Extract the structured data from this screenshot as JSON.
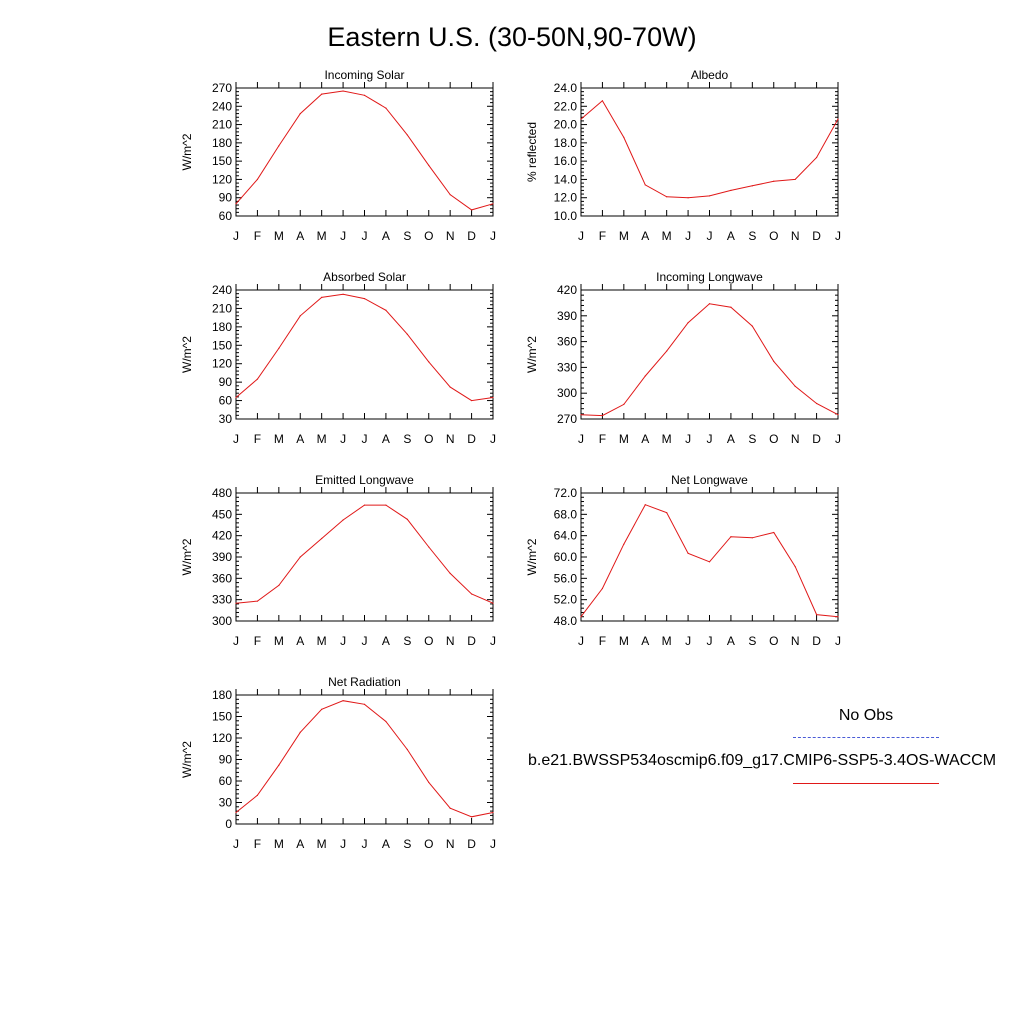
{
  "figure": {
    "title": "Eastern U.S. (30-50N,90-70W)"
  },
  "colors": {
    "model_line": "#e01818",
    "obs_line": "#4a5bd6",
    "axis": "#000000"
  },
  "legend": {
    "obs_label": "No Obs",
    "model_label": "b.e21.BWSSP534oscmip6.f09_g17.CMIP6-SSP5-3.4OS-WACCM"
  },
  "chart_data": [
    {
      "type": "line",
      "title": "Incoming Solar",
      "ylabel": "W/m^2",
      "xlabel": "",
      "categories": [
        "J",
        "F",
        "M",
        "A",
        "M",
        "J",
        "J",
        "A",
        "S",
        "O",
        "N",
        "D",
        "J"
      ],
      "ylim": [
        60,
        270
      ],
      "yticks": [
        "60",
        "90",
        "120",
        "150",
        "180",
        "210",
        "240",
        "270"
      ],
      "series": [
        {
          "values": [
            80,
            120,
            175,
            228,
            260,
            265,
            258,
            237,
            193,
            143,
            95,
            70,
            80
          ]
        }
      ]
    },
    {
      "type": "line",
      "title": "Albedo",
      "ylabel": "% reflected",
      "xlabel": "",
      "categories": [
        "J",
        "F",
        "M",
        "A",
        "M",
        "J",
        "J",
        "A",
        "S",
        "O",
        "N",
        "D",
        "J"
      ],
      "ylim": [
        10.0,
        24.0
      ],
      "yticks": [
        "10.0",
        "12.0",
        "14.0",
        "16.0",
        "18.0",
        "20.0",
        "22.0",
        "24.0"
      ],
      "series": [
        {
          "values": [
            20.6,
            22.6,
            18.6,
            13.4,
            12.1,
            12.0,
            12.2,
            12.8,
            13.3,
            13.8,
            14.0,
            16.4,
            20.6
          ]
        }
      ]
    },
    {
      "type": "line",
      "title": "Absorbed Solar",
      "ylabel": "W/m^2",
      "xlabel": "",
      "categories": [
        "J",
        "F",
        "M",
        "A",
        "M",
        "J",
        "J",
        "A",
        "S",
        "O",
        "N",
        "D",
        "J"
      ],
      "ylim": [
        30,
        240
      ],
      "yticks": [
        "30",
        "60",
        "90",
        "120",
        "150",
        "180",
        "210",
        "240"
      ],
      "series": [
        {
          "values": [
            65,
            95,
            145,
            198,
            228,
            233,
            226,
            207,
            168,
            123,
            82,
            60,
            65
          ]
        }
      ]
    },
    {
      "type": "line",
      "title": "Incoming Longwave",
      "ylabel": "W/m^2",
      "xlabel": "",
      "categories": [
        "J",
        "F",
        "M",
        "A",
        "M",
        "J",
        "J",
        "A",
        "S",
        "O",
        "N",
        "D",
        "J"
      ],
      "ylim": [
        270,
        420
      ],
      "yticks": [
        "270",
        "300",
        "330",
        "360",
        "390",
        "420"
      ],
      "series": [
        {
          "values": [
            275,
            274,
            287,
            320,
            349,
            382,
            404,
            400,
            378,
            337,
            308,
            288,
            275
          ]
        }
      ]
    },
    {
      "type": "line",
      "title": "Emitted Longwave",
      "ylabel": "W/m^2",
      "xlabel": "",
      "categories": [
        "J",
        "F",
        "M",
        "A",
        "M",
        "J",
        "J",
        "A",
        "S",
        "O",
        "N",
        "D",
        "J"
      ],
      "ylim": [
        300,
        480
      ],
      "yticks": [
        "300",
        "330",
        "360",
        "390",
        "420",
        "450",
        "480"
      ],
      "series": [
        {
          "values": [
            325,
            328,
            350,
            390,
            416,
            442,
            463,
            463,
            443,
            404,
            367,
            338,
            325
          ]
        }
      ]
    },
    {
      "type": "line",
      "title": "Net Longwave",
      "ylabel": "W/m^2",
      "xlabel": "",
      "categories": [
        "J",
        "F",
        "M",
        "A",
        "M",
        "J",
        "J",
        "A",
        "S",
        "O",
        "N",
        "D",
        "J"
      ],
      "ylim": [
        48.0,
        72.0
      ],
      "yticks": [
        "48.0",
        "52.0",
        "56.0",
        "60.0",
        "64.0",
        "68.0",
        "72.0"
      ],
      "series": [
        {
          "values": [
            48.8,
            54.1,
            62.4,
            69.8,
            68.3,
            60.7,
            59.1,
            63.8,
            63.6,
            64.6,
            58.2,
            49.2,
            48.8
          ]
        }
      ]
    },
    {
      "type": "line",
      "title": "Net Radiation",
      "ylabel": "W/m^2",
      "xlabel": "",
      "categories": [
        "J",
        "F",
        "M",
        "A",
        "M",
        "J",
        "J",
        "A",
        "S",
        "O",
        "N",
        "D",
        "J"
      ],
      "ylim": [
        0,
        180
      ],
      "yticks": [
        "0",
        "30",
        "60",
        "90",
        "120",
        "150",
        "180"
      ],
      "series": [
        {
          "values": [
            16,
            40,
            82,
            128,
            160,
            172,
            167,
            143,
            104,
            58,
            22,
            10,
            16
          ]
        }
      ]
    }
  ]
}
